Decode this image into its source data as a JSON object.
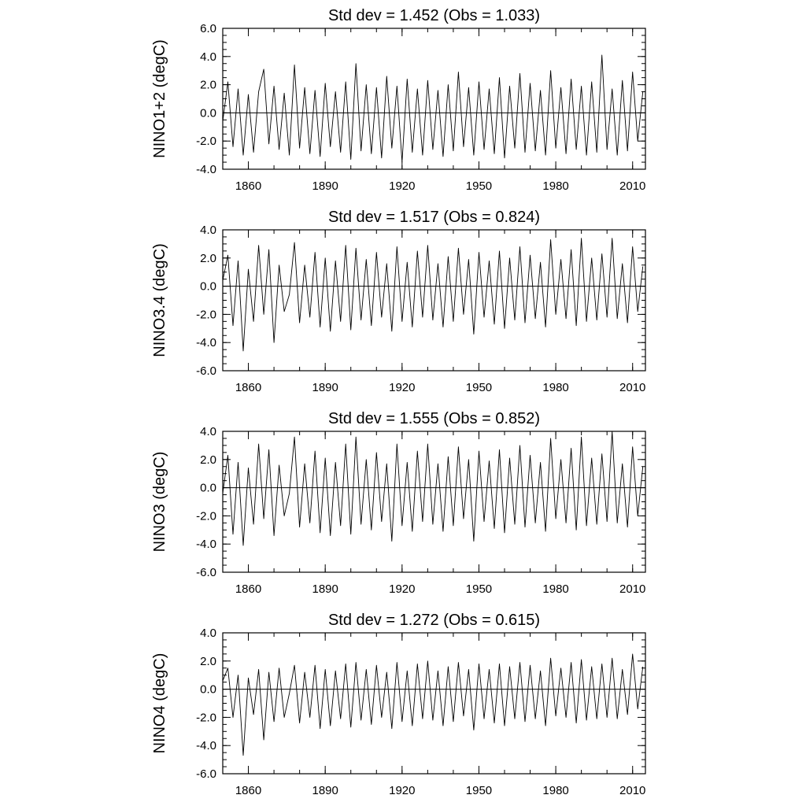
{
  "chart_data": [
    {
      "type": "line",
      "title": "Std dev = 1.452 (Obs = 1.033)",
      "ylabel": "NINO1+2 (degC)",
      "xlabel": "",
      "xlim": [
        1850,
        2015
      ],
      "ylim": [
        -4.0,
        6.0
      ],
      "xticks": [
        1860,
        1890,
        1920,
        1950,
        1980,
        2010
      ],
      "xtick_labels": [
        "1860",
        "1890",
        "1920",
        "1950",
        "1980",
        "2010"
      ],
      "yticks": [
        -4.0,
        -2.0,
        0.0,
        2.0,
        4.0,
        6.0
      ],
      "ytick_labels": [
        "-4.0",
        "-2.0",
        "0.0",
        "2.0",
        "4.0",
        "6.0"
      ],
      "reference_line": 0.0,
      "grid": false,
      "line_color": "#000000",
      "series": [
        {
          "x": [
            1850,
            1852,
            1854,
            1856,
            1858,
            1860,
            1862,
            1864,
            1866,
            1868,
            1870,
            1872,
            1874,
            1876,
            1878,
            1880,
            1882,
            1884,
            1886,
            1888,
            1890,
            1892,
            1894,
            1896,
            1898,
            1900,
            1902,
            1904,
            1906,
            1908,
            1910,
            1912,
            1914,
            1916,
            1918,
            1920,
            1922,
            1924,
            1926,
            1928,
            1930,
            1932,
            1934,
            1936,
            1938,
            1940,
            1942,
            1944,
            1946,
            1948,
            1950,
            1952,
            1954,
            1956,
            1958,
            1960,
            1962,
            1964,
            1966,
            1968,
            1970,
            1972,
            1974,
            1976,
            1978,
            1980,
            1982,
            1984,
            1986,
            1988,
            1990,
            1992,
            1994,
            1996,
            1998,
            2000,
            2002,
            2004,
            2006,
            2008,
            2010,
            2012,
            2014
          ],
          "y": [
            -0.6,
            2.2,
            -2.4,
            1.7,
            -3.0,
            1.3,
            -2.8,
            1.5,
            3.1,
            -2.2,
            1.9,
            -2.6,
            1.4,
            -3.0,
            3.4,
            -2.5,
            1.8,
            -2.9,
            1.6,
            -3.1,
            2.1,
            -2.4,
            1.5,
            -2.8,
            2.2,
            -3.3,
            3.5,
            -2.7,
            2.0,
            -2.9,
            1.8,
            -3.2,
            2.6,
            -2.5,
            1.9,
            -3.5,
            2.4,
            -2.8,
            1.7,
            -3.0,
            2.3,
            -2.6,
            1.6,
            -3.1,
            2.0,
            -2.7,
            2.9,
            -2.4,
            1.8,
            -3.0,
            2.2,
            -2.6,
            1.7,
            -2.9,
            2.5,
            -3.2,
            1.9,
            -2.5,
            2.8,
            -2.8,
            2.1,
            -2.7,
            1.6,
            -3.0,
            3.0,
            -2.5,
            1.8,
            -2.9,
            2.4,
            -2.6,
            1.9,
            -3.0,
            2.2,
            -2.8,
            4.1,
            -2.6,
            1.7,
            -3.0,
            2.3,
            -2.7,
            2.9,
            -2.0,
            1.5
          ]
        }
      ]
    },
    {
      "type": "line",
      "title": "Std dev = 1.517 (Obs = 0.824)",
      "ylabel": "NINO3.4 (degC)",
      "xlabel": "",
      "xlim": [
        1850,
        2015
      ],
      "ylim": [
        -6.0,
        4.0
      ],
      "xticks": [
        1860,
        1890,
        1920,
        1950,
        1980,
        2010
      ],
      "xtick_labels": [
        "1860",
        "1890",
        "1920",
        "1950",
        "1980",
        "2010"
      ],
      "yticks": [
        -6.0,
        -4.0,
        -2.0,
        0.0,
        2.0,
        4.0
      ],
      "ytick_labels": [
        "-6.0",
        "-4.0",
        "-2.0",
        "0.0",
        "2.0",
        "4.0"
      ],
      "reference_line": 0.0,
      "grid": false,
      "line_color": "#000000",
      "series": [
        {
          "x": [
            1850,
            1852,
            1854,
            1856,
            1858,
            1860,
            1862,
            1864,
            1866,
            1868,
            1870,
            1872,
            1874,
            1876,
            1878,
            1880,
            1882,
            1884,
            1886,
            1888,
            1890,
            1892,
            1894,
            1896,
            1898,
            1900,
            1902,
            1904,
            1906,
            1908,
            1910,
            1912,
            1914,
            1916,
            1918,
            1920,
            1922,
            1924,
            1926,
            1928,
            1930,
            1932,
            1934,
            1936,
            1938,
            1940,
            1942,
            1944,
            1946,
            1948,
            1950,
            1952,
            1954,
            1956,
            1958,
            1960,
            1962,
            1964,
            1966,
            1968,
            1970,
            1972,
            1974,
            1976,
            1978,
            1980,
            1982,
            1984,
            1986,
            1988,
            1990,
            1992,
            1994,
            1996,
            1998,
            2000,
            2002,
            2004,
            2006,
            2008,
            2010,
            2012,
            2014
          ],
          "y": [
            0.4,
            2.2,
            -2.8,
            1.8,
            -4.6,
            1.2,
            -2.5,
            2.9,
            -2.0,
            2.6,
            -4.0,
            1.5,
            -1.8,
            -0.6,
            3.1,
            -2.6,
            1.5,
            -2.2,
            2.4,
            -2.9,
            2.0,
            -3.2,
            1.8,
            -2.5,
            2.9,
            -3.1,
            2.7,
            -2.4,
            1.9,
            -2.8,
            2.4,
            -2.2,
            1.6,
            -3.2,
            2.8,
            -2.5,
            1.7,
            -2.9,
            2.5,
            -2.2,
            2.9,
            -2.4,
            1.6,
            -2.9,
            2.1,
            -2.5,
            2.7,
            -2.0,
            1.9,
            -3.4,
            2.4,
            -2.2,
            1.8,
            -2.7,
            2.5,
            -3.0,
            2.0,
            -2.4,
            2.8,
            -2.6,
            2.2,
            -2.3,
            1.7,
            -2.9,
            3.3,
            -2.0,
            1.9,
            -2.3,
            2.6,
            -2.8,
            3.4,
            -2.5,
            2.0,
            -2.4,
            2.3,
            -2.2,
            3.4,
            -2.3,
            1.6,
            -2.6,
            2.8,
            -1.8,
            1.4
          ]
        }
      ]
    },
    {
      "type": "line",
      "title": "Std dev = 1.555 (Obs = 0.852)",
      "ylabel": "NINO3 (degC)",
      "xlabel": "",
      "xlim": [
        1850,
        2015
      ],
      "ylim": [
        -6.0,
        4.0
      ],
      "xticks": [
        1860,
        1890,
        1920,
        1950,
        1980,
        2010
      ],
      "xtick_labels": [
        "1860",
        "1890",
        "1920",
        "1950",
        "1980",
        "2010"
      ],
      "yticks": [
        -6.0,
        -4.0,
        -2.0,
        0.0,
        2.0,
        4.0
      ],
      "ytick_labels": [
        "-6.0",
        "-4.0",
        "-2.0",
        "0.0",
        "2.0",
        "4.0"
      ],
      "reference_line": 0.0,
      "grid": false,
      "line_color": "#000000",
      "series": [
        {
          "x": [
            1850,
            1852,
            1854,
            1856,
            1858,
            1860,
            1862,
            1864,
            1866,
            1868,
            1870,
            1872,
            1874,
            1876,
            1878,
            1880,
            1882,
            1884,
            1886,
            1888,
            1890,
            1892,
            1894,
            1896,
            1898,
            1900,
            1902,
            1904,
            1906,
            1908,
            1910,
            1912,
            1914,
            1916,
            1918,
            1920,
            1922,
            1924,
            1926,
            1928,
            1930,
            1932,
            1934,
            1936,
            1938,
            1940,
            1942,
            1944,
            1946,
            1948,
            1950,
            1952,
            1954,
            1956,
            1958,
            1960,
            1962,
            1964,
            1966,
            1968,
            1970,
            1972,
            1974,
            1976,
            1978,
            1980,
            1982,
            1984,
            1986,
            1988,
            1990,
            1992,
            1994,
            1996,
            1998,
            2000,
            2002,
            2004,
            2006,
            2008,
            2010,
            2012,
            2014
          ],
          "y": [
            -0.4,
            2.3,
            -3.3,
            1.8,
            -4.1,
            1.4,
            -2.6,
            3.1,
            -2.2,
            2.7,
            -3.4,
            1.6,
            -2.0,
            -0.4,
            3.6,
            -2.8,
            1.7,
            -2.5,
            2.6,
            -3.2,
            2.1,
            -3.4,
            1.8,
            -2.7,
            3.1,
            -3.3,
            3.6,
            -2.6,
            2.0,
            -3.0,
            2.5,
            -2.4,
            1.7,
            -3.8,
            3.1,
            -2.7,
            1.8,
            -3.1,
            2.6,
            -2.4,
            3.1,
            -2.6,
            1.7,
            -3.1,
            2.2,
            -2.7,
            2.9,
            -2.2,
            2.0,
            -3.8,
            2.6,
            -2.4,
            1.9,
            -2.9,
            2.7,
            -3.2,
            2.1,
            -2.6,
            3.0,
            -2.8,
            2.3,
            -2.5,
            1.8,
            -3.1,
            3.5,
            -2.2,
            2.0,
            -2.5,
            2.8,
            -3.0,
            3.6,
            -2.7,
            2.1,
            -2.6,
            2.4,
            -2.4,
            4.0,
            -2.5,
            1.7,
            -2.8,
            2.9,
            -2.0,
            1.5
          ]
        }
      ]
    },
    {
      "type": "line",
      "title": "Std dev = 1.272 (Obs = 0.615)",
      "ylabel": "NINO4 (degC)",
      "xlabel": "",
      "xlim": [
        1850,
        2015
      ],
      "ylim": [
        -6.0,
        4.0
      ],
      "xticks": [
        1860,
        1890,
        1920,
        1950,
        1980,
        2010
      ],
      "xtick_labels": [
        "1860",
        "1890",
        "1920",
        "1950",
        "1980",
        "2010"
      ],
      "yticks": [
        -6.0,
        -4.0,
        -2.0,
        0.0,
        2.0,
        4.0
      ],
      "ytick_labels": [
        "-6.0",
        "-4.0",
        "-2.0",
        "0.0",
        "2.0",
        "4.0"
      ],
      "reference_line": 0.0,
      "grid": false,
      "line_color": "#000000",
      "series": [
        {
          "x": [
            1850,
            1852,
            1854,
            1856,
            1858,
            1860,
            1862,
            1864,
            1866,
            1868,
            1870,
            1872,
            1874,
            1876,
            1878,
            1880,
            1882,
            1884,
            1886,
            1888,
            1890,
            1892,
            1894,
            1896,
            1898,
            1900,
            1902,
            1904,
            1906,
            1908,
            1910,
            1912,
            1914,
            1916,
            1918,
            1920,
            1922,
            1924,
            1926,
            1928,
            1930,
            1932,
            1934,
            1936,
            1938,
            1940,
            1942,
            1944,
            1946,
            1948,
            1950,
            1952,
            1954,
            1956,
            1958,
            1960,
            1962,
            1964,
            1966,
            1968,
            1970,
            1972,
            1974,
            1976,
            1978,
            1980,
            1982,
            1984,
            1986,
            1988,
            1990,
            1992,
            1994,
            1996,
            1998,
            2000,
            2002,
            2004,
            2006,
            2008,
            2010,
            2012,
            2014
          ],
          "y": [
            0.6,
            1.5,
            -2.0,
            1.0,
            -4.7,
            0.8,
            -1.8,
            1.4,
            -3.6,
            1.2,
            -2.3,
            1.5,
            -2.0,
            -0.3,
            1.7,
            -2.4,
            1.2,
            -2.0,
            1.7,
            -2.8,
            1.4,
            -2.6,
            1.3,
            -2.1,
            1.8,
            -2.7,
            1.9,
            -2.2,
            1.4,
            -2.5,
            1.7,
            -2.0,
            1.2,
            -2.8,
            1.9,
            -2.3,
            1.3,
            -2.6,
            1.8,
            -2.1,
            2.0,
            -2.2,
            1.3,
            -2.6,
            1.6,
            -2.3,
            1.9,
            -1.9,
            1.4,
            -2.9,
            1.8,
            -2.1,
            1.4,
            -2.4,
            1.8,
            -2.6,
            1.6,
            -2.1,
            1.9,
            -2.3,
            1.7,
            -2.1,
            1.3,
            -2.6,
            2.2,
            -1.9,
            1.5,
            -2.0,
            1.9,
            -2.4,
            2.1,
            -2.2,
            1.6,
            -2.1,
            1.8,
            -2.0,
            2.2,
            -2.1,
            1.4,
            -1.8,
            2.5,
            -1.4,
            1.6
          ]
        }
      ]
    }
  ]
}
